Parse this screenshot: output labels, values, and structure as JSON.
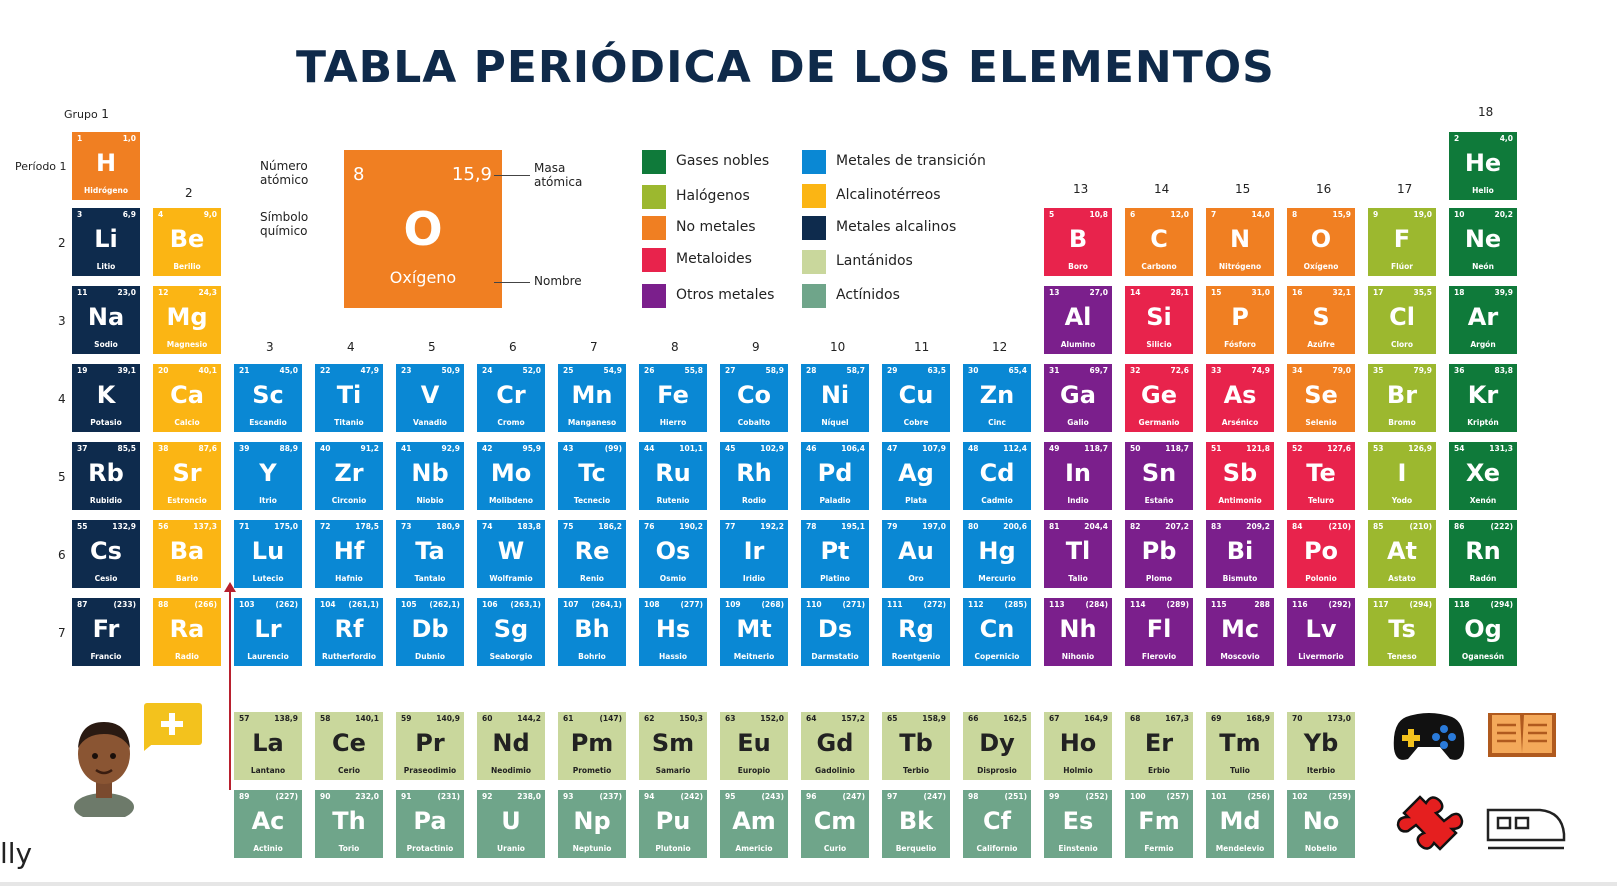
{
  "title": "TABLA PERIÓDICA DE LOS ELEMENTOS",
  "labels": {
    "group": "Grupo",
    "period": "Período",
    "group_numbers": [
      "1",
      "2",
      "3",
      "4",
      "5",
      "6",
      "7",
      "8",
      "9",
      "10",
      "11",
      "12",
      "13",
      "14",
      "15",
      "16",
      "17",
      "18"
    ],
    "period_numbers": [
      "1",
      "2",
      "3",
      "4",
      "5",
      "6",
      "7"
    ]
  },
  "key": {
    "number_label_1": "Número",
    "number_label_2": "atómico",
    "symbol_label_1": "Símbolo",
    "symbol_label_2": "químico",
    "mass_label_1": "Masa",
    "mass_label_2": "atómica",
    "name_label": "Nombre",
    "number": "8",
    "mass": "15,9",
    "symbol": "O",
    "name": "Oxígeno"
  },
  "legend": [
    {
      "label": "Gases nobles",
      "color": "#0f7a3a"
    },
    {
      "label": "Halógenos",
      "color": "#9cb82f"
    },
    {
      "label": "No metales",
      "color": "#f07f22"
    },
    {
      "label": "Metaloides",
      "color": "#e8234c"
    },
    {
      "label": "Otros metales",
      "color": "#7b1f8c"
    },
    {
      "label": "Metales de transición",
      "color": "#0a88d4"
    },
    {
      "label": "Alcalinotérreos",
      "color": "#fbb514"
    },
    {
      "label": "Metales alcalinos",
      "color": "#0e2b4d"
    },
    {
      "label": "Lantánidos",
      "color": "#c9d79c"
    },
    {
      "label": "Actínidos",
      "color": "#6fa58a"
    }
  ],
  "corner_text": "lly",
  "elements": [
    {
      "n": "1",
      "m": "1,0",
      "s": "H",
      "name": "Hidrógeno",
      "c": "#f07f22"
    },
    {
      "n": "2",
      "m": "4,0",
      "s": "He",
      "name": "Helio",
      "c": "#0f7a3a"
    },
    {
      "n": "3",
      "m": "6,9",
      "s": "Li",
      "name": "Litio",
      "c": "#0e2b4d"
    },
    {
      "n": "4",
      "m": "9,0",
      "s": "Be",
      "name": "Berilio",
      "c": "#fbb514"
    },
    {
      "n": "5",
      "m": "10,8",
      "s": "B",
      "name": "Boro",
      "c": "#e8234c"
    },
    {
      "n": "6",
      "m": "12,0",
      "s": "C",
      "name": "Carbono",
      "c": "#f07f22"
    },
    {
      "n": "7",
      "m": "14,0",
      "s": "N",
      "name": "Nitrógeno",
      "c": "#f07f22"
    },
    {
      "n": "8",
      "m": "15,9",
      "s": "O",
      "name": "Oxígeno",
      "c": "#f07f22"
    },
    {
      "n": "9",
      "m": "19,0",
      "s": "F",
      "name": "Flúor",
      "c": "#9cb82f"
    },
    {
      "n": "10",
      "m": "20,2",
      "s": "Ne",
      "name": "Neón",
      "c": "#0f7a3a"
    },
    {
      "n": "11",
      "m": "23,0",
      "s": "Na",
      "name": "Sodio",
      "c": "#0e2b4d"
    },
    {
      "n": "12",
      "m": "24,3",
      "s": "Mg",
      "name": "Magnesio",
      "c": "#fbb514"
    },
    {
      "n": "13",
      "m": "27,0",
      "s": "Al",
      "name": "Alumino",
      "c": "#7b1f8c"
    },
    {
      "n": "14",
      "m": "28,1",
      "s": "Si",
      "name": "Silicio",
      "c": "#e8234c"
    },
    {
      "n": "15",
      "m": "31,0",
      "s": "P",
      "name": "Fósforo",
      "c": "#f07f22"
    },
    {
      "n": "16",
      "m": "32,1",
      "s": "S",
      "name": "Azúfre",
      "c": "#f07f22"
    },
    {
      "n": "17",
      "m": "35,5",
      "s": "Cl",
      "name": "Cloro",
      "c": "#9cb82f"
    },
    {
      "n": "18",
      "m": "39,9",
      "s": "Ar",
      "name": "Argón",
      "c": "#0f7a3a"
    },
    {
      "n": "19",
      "m": "39,1",
      "s": "K",
      "name": "Potasio",
      "c": "#0e2b4d"
    },
    {
      "n": "20",
      "m": "40,1",
      "s": "Ca",
      "name": "Calcio",
      "c": "#fbb514"
    },
    {
      "n": "21",
      "m": "45,0",
      "s": "Sc",
      "name": "Escandio",
      "c": "#0a88d4"
    },
    {
      "n": "22",
      "m": "47,9",
      "s": "Ti",
      "name": "Titanio",
      "c": "#0a88d4"
    },
    {
      "n": "23",
      "m": "50,9",
      "s": "V",
      "name": "Vanadio",
      "c": "#0a88d4"
    },
    {
      "n": "24",
      "m": "52,0",
      "s": "Cr",
      "name": "Cromo",
      "c": "#0a88d4"
    },
    {
      "n": "25",
      "m": "54,9",
      "s": "Mn",
      "name": "Manganeso",
      "c": "#0a88d4"
    },
    {
      "n": "26",
      "m": "55,8",
      "s": "Fe",
      "name": "Hierro",
      "c": "#0a88d4"
    },
    {
      "n": "27",
      "m": "58,9",
      "s": "Co",
      "name": "Cobalto",
      "c": "#0a88d4"
    },
    {
      "n": "28",
      "m": "58,7",
      "s": "Ni",
      "name": "Níquel",
      "c": "#0a88d4"
    },
    {
      "n": "29",
      "m": "63,5",
      "s": "Cu",
      "name": "Cobre",
      "c": "#0a88d4"
    },
    {
      "n": "30",
      "m": "65,4",
      "s": "Zn",
      "name": "Cinc",
      "c": "#0a88d4"
    },
    {
      "n": "31",
      "m": "69,7",
      "s": "Ga",
      "name": "Galio",
      "c": "#7b1f8c"
    },
    {
      "n": "32",
      "m": "72,6",
      "s": "Ge",
      "name": "Germanio",
      "c": "#e8234c"
    },
    {
      "n": "33",
      "m": "74,9",
      "s": "As",
      "name": "Arsénico",
      "c": "#e8234c"
    },
    {
      "n": "34",
      "m": "79,0",
      "s": "Se",
      "name": "Selenio",
      "c": "#f07f22"
    },
    {
      "n": "35",
      "m": "79,9",
      "s": "Br",
      "name": "Bromo",
      "c": "#9cb82f"
    },
    {
      "n": "36",
      "m": "83,8",
      "s": "Kr",
      "name": "Kriptón",
      "c": "#0f7a3a"
    },
    {
      "n": "37",
      "m": "85,5",
      "s": "Rb",
      "name": "Rubidio",
      "c": "#0e2b4d"
    },
    {
      "n": "38",
      "m": "87,6",
      "s": "Sr",
      "name": "Estroncio",
      "c": "#fbb514"
    },
    {
      "n": "39",
      "m": "88,9",
      "s": "Y",
      "name": "Itrio",
      "c": "#0a88d4"
    },
    {
      "n": "40",
      "m": "91,2",
      "s": "Zr",
      "name": "Circonio",
      "c": "#0a88d4"
    },
    {
      "n": "41",
      "m": "92,9",
      "s": "Nb",
      "name": "Niobio",
      "c": "#0a88d4"
    },
    {
      "n": "42",
      "m": "95,9",
      "s": "Mo",
      "name": "Molibdeno",
      "c": "#0a88d4"
    },
    {
      "n": "43",
      "m": "(99)",
      "s": "Tc",
      "name": "Tecnecio",
      "c": "#0a88d4"
    },
    {
      "n": "44",
      "m": "101,1",
      "s": "Ru",
      "name": "Rutenio",
      "c": "#0a88d4"
    },
    {
      "n": "45",
      "m": "102,9",
      "s": "Rh",
      "name": "Rodio",
      "c": "#0a88d4"
    },
    {
      "n": "46",
      "m": "106,4",
      "s": "Pd",
      "name": "Paladio",
      "c": "#0a88d4"
    },
    {
      "n": "47",
      "m": "107,9",
      "s": "Ag",
      "name": "Plata",
      "c": "#0a88d4"
    },
    {
      "n": "48",
      "m": "112,4",
      "s": "Cd",
      "name": "Cadmio",
      "c": "#0a88d4"
    },
    {
      "n": "49",
      "m": "118,7",
      "s": "In",
      "name": "Indio",
      "c": "#7b1f8c"
    },
    {
      "n": "50",
      "m": "118,7",
      "s": "Sn",
      "name": "Estaño",
      "c": "#7b1f8c"
    },
    {
      "n": "51",
      "m": "121,8",
      "s": "Sb",
      "name": "Antimonio",
      "c": "#e8234c"
    },
    {
      "n": "52",
      "m": "127,6",
      "s": "Te",
      "name": "Teluro",
      "c": "#e8234c"
    },
    {
      "n": "53",
      "m": "126,9",
      "s": "I",
      "name": "Yodo",
      "c": "#9cb82f"
    },
    {
      "n": "54",
      "m": "131,3",
      "s": "Xe",
      "name": "Xenón",
      "c": "#0f7a3a"
    },
    {
      "n": "55",
      "m": "132,9",
      "s": "Cs",
      "name": "Cesio",
      "c": "#0e2b4d"
    },
    {
      "n": "56",
      "m": "137,3",
      "s": "Ba",
      "name": "Bario",
      "c": "#fbb514"
    },
    {
      "n": "71",
      "m": "175,0",
      "s": "Lu",
      "name": "Lutecio",
      "c": "#0a88d4"
    },
    {
      "n": "72",
      "m": "178,5",
      "s": "Hf",
      "name": "Hafnio",
      "c": "#0a88d4"
    },
    {
      "n": "73",
      "m": "180,9",
      "s": "Ta",
      "name": "Tantalo",
      "c": "#0a88d4"
    },
    {
      "n": "74",
      "m": "183,8",
      "s": "W",
      "name": "Wolframio",
      "c": "#0a88d4"
    },
    {
      "n": "75",
      "m": "186,2",
      "s": "Re",
      "name": "Renio",
      "c": "#0a88d4"
    },
    {
      "n": "76",
      "m": "190,2",
      "s": "Os",
      "name": "Osmio",
      "c": "#0a88d4"
    },
    {
      "n": "77",
      "m": "192,2",
      "s": "Ir",
      "name": "Iridio",
      "c": "#0a88d4"
    },
    {
      "n": "78",
      "m": "195,1",
      "s": "Pt",
      "name": "Platino",
      "c": "#0a88d4"
    },
    {
      "n": "79",
      "m": "197,0",
      "s": "Au",
      "name": "Oro",
      "c": "#0a88d4"
    },
    {
      "n": "80",
      "m": "200,6",
      "s": "Hg",
      "name": "Mercurio",
      "c": "#0a88d4"
    },
    {
      "n": "81",
      "m": "204,4",
      "s": "Tl",
      "name": "Talio",
      "c": "#7b1f8c"
    },
    {
      "n": "82",
      "m": "207,2",
      "s": "Pb",
      "name": "Plomo",
      "c": "#7b1f8c"
    },
    {
      "n": "83",
      "m": "209,2",
      "s": "Bi",
      "name": "Bismuto",
      "c": "#7b1f8c"
    },
    {
      "n": "84",
      "m": "(210)",
      "s": "Po",
      "name": "Polonio",
      "c": "#e8234c"
    },
    {
      "n": "85",
      "m": "(210)",
      "s": "At",
      "name": "Astato",
      "c": "#9cb82f"
    },
    {
      "n": "86",
      "m": "(222)",
      "s": "Rn",
      "name": "Radón",
      "c": "#0f7a3a"
    },
    {
      "n": "87",
      "m": "(233)",
      "s": "Fr",
      "name": "Francio",
      "c": "#0e2b4d"
    },
    {
      "n": "88",
      "m": "(266)",
      "s": "Ra",
      "name": "Radio",
      "c": "#fbb514"
    },
    {
      "n": "103",
      "m": "(262)",
      "s": "Lr",
      "name": "Laurencio",
      "c": "#0a88d4"
    },
    {
      "n": "104",
      "m": "(261,1)",
      "s": "Rf",
      "name": "Rutherfordio",
      "c": "#0a88d4"
    },
    {
      "n": "105",
      "m": "(262,1)",
      "s": "Db",
      "name": "Dubnio",
      "c": "#0a88d4"
    },
    {
      "n": "106",
      "m": "(263,1)",
      "s": "Sg",
      "name": "Seaborgio",
      "c": "#0a88d4"
    },
    {
      "n": "107",
      "m": "(264,1)",
      "s": "Bh",
      "name": "Bohrio",
      "c": "#0a88d4"
    },
    {
      "n": "108",
      "m": "(277)",
      "s": "Hs",
      "name": "Hassio",
      "c": "#0a88d4"
    },
    {
      "n": "109",
      "m": "(268)",
      "s": "Mt",
      "name": "Meitnerio",
      "c": "#0a88d4"
    },
    {
      "n": "110",
      "m": "(271)",
      "s": "Ds",
      "name": "Darmstatio",
      "c": "#0a88d4"
    },
    {
      "n": "111",
      "m": "(272)",
      "s": "Rg",
      "name": "Roentgenio",
      "c": "#0a88d4"
    },
    {
      "n": "112",
      "m": "(285)",
      "s": "Cn",
      "name": "Copernicio",
      "c": "#0a88d4"
    },
    {
      "n": "113",
      "m": "(284)",
      "s": "Nh",
      "name": "Nihonio",
      "c": "#7b1f8c"
    },
    {
      "n": "114",
      "m": "(289)",
      "s": "Fl",
      "name": "Flerovio",
      "c": "#7b1f8c"
    },
    {
      "n": "115",
      "m": "288",
      "s": "Mc",
      "name": "Moscovio",
      "c": "#7b1f8c"
    },
    {
      "n": "116",
      "m": "(292)",
      "s": "Lv",
      "name": "Livermorio",
      "c": "#7b1f8c"
    },
    {
      "n": "117",
      "m": "(294)",
      "s": "Ts",
      "name": "Teneso",
      "c": "#9cb82f"
    },
    {
      "n": "118",
      "m": "(294)",
      "s": "Og",
      "name": "Oganesón",
      "c": "#0f7a3a"
    },
    {
      "n": "57",
      "m": "138,9",
      "s": "La",
      "name": "Lantano",
      "c": "#c9d79c"
    },
    {
      "n": "58",
      "m": "140,1",
      "s": "Ce",
      "name": "Cerio",
      "c": "#c9d79c"
    },
    {
      "n": "59",
      "m": "140,9",
      "s": "Pr",
      "name": "Praseodimio",
      "c": "#c9d79c"
    },
    {
      "n": "60",
      "m": "144,2",
      "s": "Nd",
      "name": "Neodimio",
      "c": "#c9d79c"
    },
    {
      "n": "61",
      "m": "(147)",
      "s": "Pm",
      "name": "Prometio",
      "c": "#c9d79c"
    },
    {
      "n": "62",
      "m": "150,3",
      "s": "Sm",
      "name": "Samario",
      "c": "#c9d79c"
    },
    {
      "n": "63",
      "m": "152,0",
      "s": "Eu",
      "name": "Europio",
      "c": "#c9d79c"
    },
    {
      "n": "64",
      "m": "157,2",
      "s": "Gd",
      "name": "Gadolinio",
      "c": "#c9d79c"
    },
    {
      "n": "65",
      "m": "158,9",
      "s": "Tb",
      "name": "Terbio",
      "c": "#c9d79c"
    },
    {
      "n": "66",
      "m": "162,5",
      "s": "Dy",
      "name": "Disprosio",
      "c": "#c9d79c"
    },
    {
      "n": "67",
      "m": "164,9",
      "s": "Ho",
      "name": "Holmio",
      "c": "#c9d79c"
    },
    {
      "n": "68",
      "m": "167,3",
      "s": "Er",
      "name": "Erbio",
      "c": "#c9d79c"
    },
    {
      "n": "69",
      "m": "168,9",
      "s": "Tm",
      "name": "Tulio",
      "c": "#c9d79c"
    },
    {
      "n": "70",
      "m": "173,0",
      "s": "Yb",
      "name": "Iterbio",
      "c": "#c9d79c"
    },
    {
      "n": "89",
      "m": "(227)",
      "s": "Ac",
      "name": "Actinio",
      "c": "#6fa58a"
    },
    {
      "n": "90",
      "m": "232,0",
      "s": "Th",
      "name": "Torio",
      "c": "#6fa58a"
    },
    {
      "n": "91",
      "m": "(231)",
      "s": "Pa",
      "name": "Protactinio",
      "c": "#6fa58a"
    },
    {
      "n": "92",
      "m": "238,0",
      "s": "U",
      "name": "Uranio",
      "c": "#6fa58a"
    },
    {
      "n": "93",
      "m": "(237)",
      "s": "Np",
      "name": "Neptunio",
      "c": "#6fa58a"
    },
    {
      "n": "94",
      "m": "(242)",
      "s": "Pu",
      "name": "Plutonio",
      "c": "#6fa58a"
    },
    {
      "n": "95",
      "m": "(243)",
      "s": "Am",
      "name": "Americio",
      "c": "#6fa58a"
    },
    {
      "n": "96",
      "m": "(247)",
      "s": "Cm",
      "name": "Curio",
      "c": "#6fa58a"
    },
    {
      "n": "97",
      "m": "(247)",
      "s": "Bk",
      "name": "Berquelio",
      "c": "#6fa58a"
    },
    {
      "n": "98",
      "m": "(251)",
      "s": "Cf",
      "name": "Californio",
      "c": "#6fa58a"
    },
    {
      "n": "99",
      "m": "(252)",
      "s": "Es",
      "name": "Einstenio",
      "c": "#6fa58a"
    },
    {
      "n": "100",
      "m": "(257)",
      "s": "Fm",
      "name": "Fermio",
      "c": "#6fa58a"
    },
    {
      "n": "101",
      "m": "(256)",
      "s": "Md",
      "name": "Mendelevio",
      "c": "#6fa58a"
    },
    {
      "n": "102",
      "m": "(259)",
      "s": "No",
      "name": "Nobelio",
      "c": "#6fa58a"
    }
  ],
  "icons": [
    "avatar",
    "add-icon",
    "gamepad-icon",
    "book-icon",
    "puzzle-icon",
    "train-icon"
  ]
}
